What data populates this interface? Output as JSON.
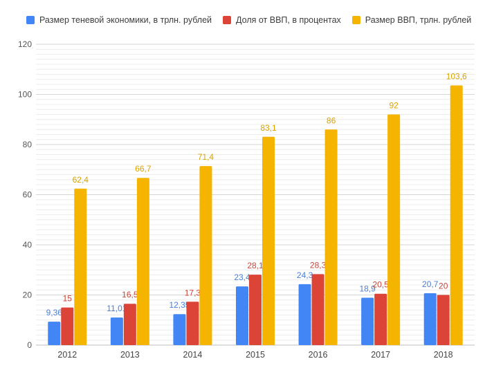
{
  "chart_data": {
    "type": "bar",
    "categories": [
      "2012",
      "2013",
      "2014",
      "2015",
      "2016",
      "2017",
      "2018"
    ],
    "series": [
      {
        "name": "Размер теневой экономики, в трлн. рублей",
        "color": "#4285f4",
        "label_color": "#4a7fd6",
        "values": [
          9.36,
          11.01,
          12.35,
          23.4,
          24.3,
          18.9,
          20.7
        ],
        "labels": [
          "9,36",
          "11,01",
          "12,35",
          "23,4",
          "24,3",
          "18,9",
          "20,7"
        ]
      },
      {
        "name": "Доля от ВВП, в процентах",
        "color": "#db4437",
        "label_color": "#c9463a",
        "values": [
          15,
          16.5,
          17.3,
          28.1,
          28.3,
          20.5,
          20
        ],
        "labels": [
          "15",
          "16,5",
          "17,3",
          "28,1",
          "28,3",
          "20,5",
          "20"
        ]
      },
      {
        "name": "Размер ВВП, трлн. рублей",
        "color": "#f4b400",
        "label_color": "#d9a300",
        "values": [
          62.4,
          66.7,
          71.4,
          83.1,
          86,
          92,
          103.6
        ],
        "labels": [
          "62,4",
          "66,7",
          "71,4",
          "83,1",
          "86",
          "92",
          "103,6"
        ]
      }
    ],
    "y_ticks": [
      "0",
      "20",
      "40",
      "60",
      "80",
      "100",
      "120"
    ],
    "ylim": [
      0,
      120
    ],
    "grid": true,
    "legend_position": "top-left",
    "title": "",
    "xlabel": "",
    "ylabel": ""
  }
}
